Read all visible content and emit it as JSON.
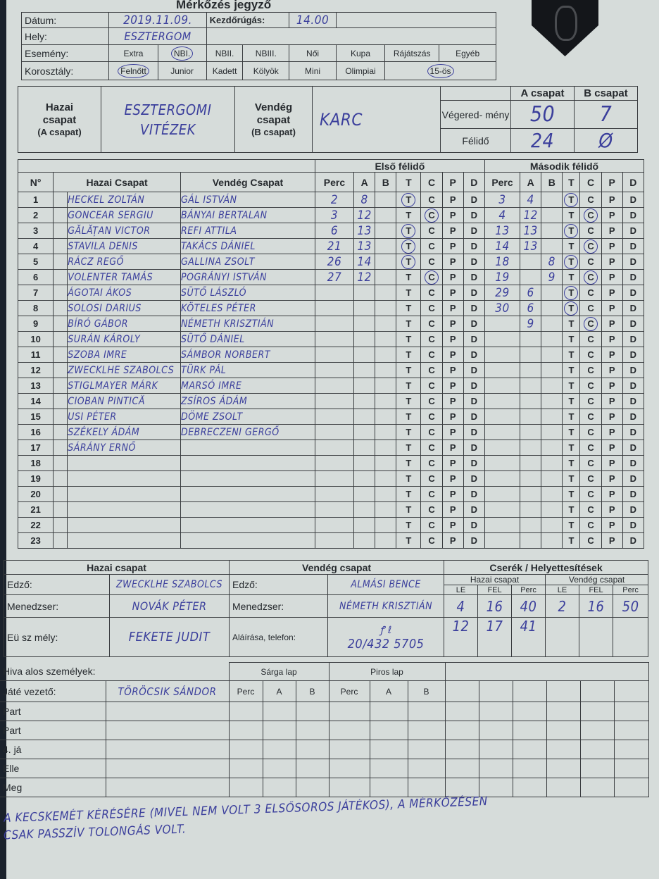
{
  "header": {
    "title": "Mérkőzés jegyző",
    "date_label": "Dátum:",
    "date_value": "2019.11.09.",
    "kickoff_label": "Kezdőrúgás:",
    "kickoff_value": "14.00",
    "place_label": "Hely:",
    "place_value": "ESZTERGOM",
    "event_label": "Esemény:",
    "age_label": "Korosztály:",
    "events": [
      {
        "label": "Extra",
        "selected": false
      },
      {
        "label": "NBI.",
        "selected": true
      },
      {
        "label": "NBII.",
        "selected": false
      },
      {
        "label": "NBIII.",
        "selected": false
      },
      {
        "label": "Női",
        "selected": false
      },
      {
        "label": "Kupa",
        "selected": false
      },
      {
        "label": "Rájátszás",
        "selected": false
      },
      {
        "label": "Egyéb",
        "selected": false
      }
    ],
    "ages": [
      {
        "label": "Felnőtt",
        "selected": true
      },
      {
        "label": "Junior",
        "selected": false
      },
      {
        "label": "Kadett",
        "selected": false
      },
      {
        "label": "Kölyök",
        "selected": false
      },
      {
        "label": "Mini",
        "selected": false
      },
      {
        "label": "Olimpiai",
        "selected": false
      },
      {
        "label": "15-ös",
        "selected": true
      }
    ]
  },
  "teams": {
    "home_label_1": "Hazai",
    "home_label_2": "csapat",
    "home_label_3": "(A csapat)",
    "home_name_1": "ESZTERGOMI",
    "home_name_2": "VITÉZEK",
    "away_label_1": "Vendég",
    "away_label_2": "csapat",
    "away_label_3": "(B csapat)",
    "away_name": "KARC",
    "col_a": "A csapat",
    "col_b": "B csapat",
    "final_label": "Végered- mény",
    "half_label": "Félidő",
    "final_a": "50",
    "final_b": "7",
    "half_a": "24",
    "half_b": "Ø"
  },
  "players": {
    "no_header": "N°",
    "home_header": "Hazai Csapat",
    "away_header": "Vendég Csapat",
    "first_half": "Első félidő",
    "second_half": "Második félidő",
    "score_cols": [
      "Perc",
      "A",
      "B",
      "T",
      "C",
      "P",
      "D"
    ],
    "rows": [
      {
        "no": "1",
        "home": "HECKEL ZOLTÁN",
        "away": "GÁL ISTVÁN"
      },
      {
        "no": "2",
        "home": "GONCEAR SERGIU",
        "away": "BÁNYAI BERTALAN"
      },
      {
        "no": "3",
        "home": "GĂLĂȚAN VICTOR",
        "away": "REFI ATTILA"
      },
      {
        "no": "4",
        "home": "STAVILA DENIS",
        "away": "TAKÁCS DÁNIEL"
      },
      {
        "no": "5",
        "home": "RÁCZ REGŐ",
        "away": "GALLINA ZSOLT"
      },
      {
        "no": "6",
        "home": "VOLENTER TAMÁS",
        "away": "POGRÁNYI ISTVÁN"
      },
      {
        "no": "7",
        "home": "ÁGOTAI ÁKOS",
        "away": "SÜTŐ LÁSZLÓ"
      },
      {
        "no": "8",
        "home": "SOLOSI DARIUS",
        "away": "KÖTELES PÉTER"
      },
      {
        "no": "9",
        "home": "BÍRÓ GÁBOR",
        "away": "NÉMETH KRISZTIÁN"
      },
      {
        "no": "10",
        "home": "SURÁN KÁROLY",
        "away": "SÜTŐ DÁNIEL"
      },
      {
        "no": "11",
        "home": "SZOBA IMRE",
        "away": "SÁMBOR NORBERT"
      },
      {
        "no": "12",
        "home": "ZWECKLHE SZABOLCS",
        "away": "TÜRK PÁL"
      },
      {
        "no": "13",
        "home": "STIGLMAYER MÁRK",
        "away": "MARSÓ IMRE"
      },
      {
        "no": "14",
        "home": "CIOBAN PINTICĂ",
        "away": "ZSÍROS ÁDÁM"
      },
      {
        "no": "15",
        "home": "USI PÉTER",
        "away": "DÖME ZSOLT"
      },
      {
        "no": "16",
        "home": "SZÉKELY ÁDÁM",
        "away": "DEBRECZENI GERGŐ"
      },
      {
        "no": "17",
        "home": "SÁRÁNY ERNŐ",
        "away": ""
      },
      {
        "no": "18",
        "home": "",
        "away": ""
      },
      {
        "no": "19",
        "home": "",
        "away": ""
      },
      {
        "no": "20",
        "home": "",
        "away": ""
      },
      {
        "no": "21",
        "home": "",
        "away": ""
      },
      {
        "no": "22",
        "home": "",
        "away": ""
      },
      {
        "no": "23",
        "home": "",
        "away": ""
      }
    ],
    "first_half_scores": [
      {
        "perc": "2",
        "a": "8",
        "b": "",
        "circled": "T"
      },
      {
        "perc": "3",
        "a": "12",
        "b": "",
        "circled": "C"
      },
      {
        "perc": "6",
        "a": "13",
        "b": "",
        "circled": "T"
      },
      {
        "perc": "21",
        "a": "13",
        "b": "",
        "circled": "T"
      },
      {
        "perc": "26",
        "a": "14",
        "b": "",
        "circled": "T"
      },
      {
        "perc": "27",
        "a": "12",
        "b": "",
        "circled": "C"
      }
    ],
    "second_half_scores": [
      {
        "perc": "3",
        "a": "4",
        "b": "",
        "circled": "T"
      },
      {
        "perc": "4",
        "a": "12",
        "b": "",
        "circled": "C"
      },
      {
        "perc": "13",
        "a": "13",
        "b": "",
        "circled": "T"
      },
      {
        "perc": "14",
        "a": "13",
        "b": "",
        "circled": "C"
      },
      {
        "perc": "18",
        "a": "",
        "b": "8",
        "circled": "T"
      },
      {
        "perc": "19",
        "a": "",
        "b": "9",
        "circled": "C"
      },
      {
        "perc": "29",
        "a": "6",
        "b": "",
        "circled": "T"
      },
      {
        "perc": "30",
        "a": "6",
        "b": "",
        "circled": "T"
      },
      {
        "perc": "",
        "a": "9",
        "b": "",
        "circled": "C"
      }
    ]
  },
  "staff": {
    "home_title": "Hazai csapat",
    "away_title": "Vendég csapat",
    "coach_label": "Edző:",
    "manager_label": "Menedzser:",
    "medic_label": "Eü sz  mély:",
    "signature_label": "Aláírása, telefon:",
    "home_coach": "ZWECKLHE SZABOLCS",
    "home_manager": "NOVÁK PÉTER",
    "home_medic": "FEKETE JUDIT",
    "away_coach": "ALMÁSI BENCE",
    "away_manager": "NÉMETH KRISZTIÁN",
    "away_phone": "20/432 5705"
  },
  "subs": {
    "title": "Cserék / Helyettesítések",
    "home": "Hazai csapat",
    "away": "Vendég csapat",
    "cols": [
      "LE",
      "FEL",
      "Perc"
    ],
    "home_rows": [
      [
        "4",
        "16",
        "40"
      ],
      [
        "12",
        "17",
        "41"
      ]
    ],
    "away_rows": [
      [
        "2",
        "16",
        "50"
      ]
    ]
  },
  "officials": {
    "title": "Hiva  alos személyek:",
    "labels": [
      "Játé  vezető:",
      "Part",
      "Part",
      "4. já",
      "Elle",
      "Meg"
    ],
    "referee": "TÖRÖCSIK SÁNDOR",
    "yellow": "Sárga lap",
    "red": "Piros lap",
    "card_cols": [
      "Perc",
      "A",
      "B"
    ]
  },
  "comment": {
    "line1": "A KECSKEMÉT KÉRÉSÉRE (MIVEL NEM VOLT 3 ELSŐSOROS JÁTÉKOS), A MÉRKŐZÉSEN",
    "line2": "CSAK PASSZÍV TOLONGÁS VOLT."
  }
}
